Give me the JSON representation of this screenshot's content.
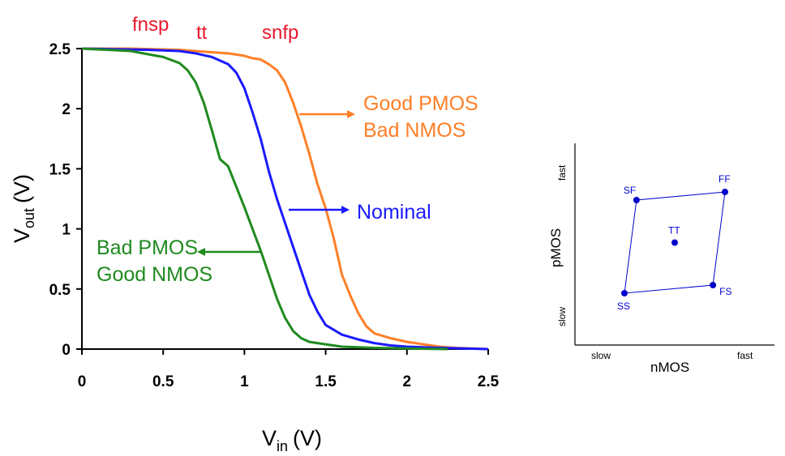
{
  "chart_data": [
    {
      "type": "line",
      "title": "",
      "xlabel": {
        "main": "V",
        "sub": "in",
        "unit": "(V)"
      },
      "ylabel": {
        "main": "V",
        "sub": "out",
        "unit": "(V)"
      },
      "xlim": [
        0,
        2.5
      ],
      "ylim": [
        0,
        2.5
      ],
      "xticks": [
        "0",
        "0.5",
        "1",
        "1.5",
        "2",
        "2.5"
      ],
      "yticks": [
        "0",
        "0.5",
        "1",
        "1.5",
        "2",
        "2.5"
      ],
      "grid": false,
      "corner_labels": [
        {
          "text": "fnsp",
          "color": "#e8192c"
        },
        {
          "text": "tt",
          "color": "#e8192c"
        },
        {
          "text": "snfp",
          "color": "#e8192c"
        }
      ],
      "series": [
        {
          "color": "#ff7f27",
          "x": [
            0,
            0.3,
            0.6,
            0.8,
            0.9,
            1.0,
            1.05,
            1.1,
            1.15,
            1.2,
            1.25,
            1.3,
            1.35,
            1.4,
            1.45,
            1.5,
            1.55,
            1.6,
            1.65,
            1.7,
            1.75,
            1.8,
            1.9,
            2.0,
            2.1,
            2.2,
            2.3,
            2.5
          ],
          "y": [
            2.5,
            2.5,
            2.49,
            2.47,
            2.46,
            2.44,
            2.42,
            2.41,
            2.37,
            2.32,
            2.22,
            2.05,
            1.85,
            1.62,
            1.37,
            1.17,
            0.92,
            0.62,
            0.45,
            0.3,
            0.19,
            0.13,
            0.09,
            0.06,
            0.04,
            0.02,
            0.01,
            0.0
          ]
        },
        {
          "color": "#1a1aff",
          "x": [
            0,
            0.4,
            0.6,
            0.7,
            0.8,
            0.9,
            0.95,
            1.0,
            1.05,
            1.1,
            1.15,
            1.2,
            1.25,
            1.3,
            1.35,
            1.4,
            1.45,
            1.5,
            1.6,
            1.7,
            1.8,
            1.9,
            2.0,
            2.2,
            2.5
          ],
          "y": [
            2.5,
            2.49,
            2.48,
            2.46,
            2.43,
            2.37,
            2.3,
            2.17,
            1.97,
            1.75,
            1.48,
            1.25,
            1.05,
            0.85,
            0.65,
            0.45,
            0.31,
            0.2,
            0.12,
            0.08,
            0.05,
            0.03,
            0.02,
            0.01,
            0.0
          ]
        },
        {
          "color": "#1f8a1f",
          "x": [
            0,
            0.3,
            0.5,
            0.6,
            0.65,
            0.7,
            0.75,
            0.8,
            0.85,
            0.9,
            0.95,
            1.0,
            1.05,
            1.1,
            1.15,
            1.2,
            1.25,
            1.3,
            1.35,
            1.4,
            1.5,
            1.6,
            1.8,
            2.0,
            2.25
          ],
          "y": [
            2.5,
            2.48,
            2.43,
            2.38,
            2.32,
            2.22,
            2.05,
            1.82,
            1.58,
            1.52,
            1.35,
            1.18,
            1.0,
            0.82,
            0.62,
            0.42,
            0.26,
            0.15,
            0.09,
            0.06,
            0.04,
            0.02,
            0.01,
            0.005,
            0.0
          ]
        }
      ],
      "annotations": [
        {
          "lines": [
            "Good PMOS",
            "Bad NMOS"
          ],
          "color": "#ff7f27",
          "arrow": "right"
        },
        {
          "lines": [
            "Nominal"
          ],
          "color": "#1a1aff",
          "arrow": "right"
        },
        {
          "lines": [
            "Bad PMOS",
            "Good NMOS"
          ],
          "color": "#1f8a1f",
          "arrow": "left"
        }
      ]
    },
    {
      "type": "scatter",
      "title": "",
      "xlabel": "nMOS",
      "ylabel": "pMOS",
      "x_tick_words": [
        "slow",
        "fast"
      ],
      "y_tick_words": [
        "slow",
        "fast"
      ],
      "color": "#0000cc",
      "points": [
        {
          "label": "SS",
          "nmos": 0.0,
          "pmos": 0.0
        },
        {
          "label": "SF",
          "nmos": 0.12,
          "pmos": 0.92
        },
        {
          "label": "FF",
          "nmos": 1.0,
          "pmos": 1.0
        },
        {
          "label": "FS",
          "nmos": 0.88,
          "pmos": 0.08
        },
        {
          "label": "TT",
          "nmos": 0.5,
          "pmos": 0.5
        }
      ],
      "outline_order": [
        "SS",
        "SF",
        "FF",
        "FS"
      ]
    }
  ]
}
